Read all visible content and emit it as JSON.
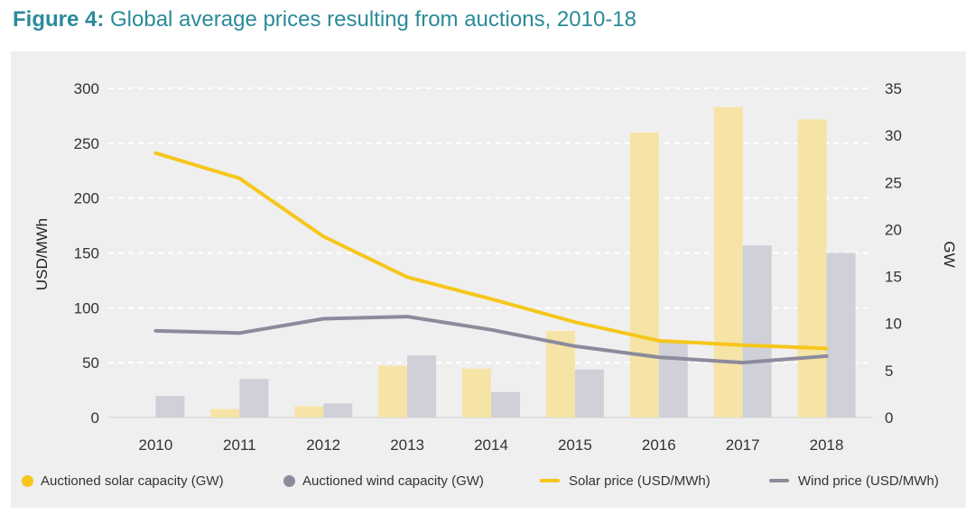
{
  "title": {
    "prefix": "Figure 4:",
    "text": "Global average prices resulting from auctions, 2010-18"
  },
  "colors": {
    "solar_bar": "#f5e4a6",
    "wind_bar": "#cfd0d8",
    "solar_line": "#f6c61b",
    "wind_line": "#8c8a9c",
    "solar_legend_dot": "#f6c61b",
    "wind_legend_dot": "#8c8a9c",
    "grid": "#ffffff"
  },
  "legend": [
    {
      "label": "Auctioned solar capacity (GW)",
      "kind": "dot",
      "color_key": "solar_legend_dot"
    },
    {
      "label": "Auctioned wind capacity (GW)",
      "kind": "dot",
      "color_key": "wind_legend_dot"
    },
    {
      "label": "Solar price (USD/MWh)",
      "kind": "line",
      "color_key": "solar_line"
    },
    {
      "label": "Wind price (USD/MWh)",
      "kind": "line",
      "color_key": "wind_line"
    }
  ],
  "chart_data": {
    "type": "bar",
    "categories": [
      "2010",
      "2011",
      "2012",
      "2013",
      "2014",
      "2015",
      "2016",
      "2017",
      "2018"
    ],
    "ylabel": "USD/MWh",
    "y2label": "GW",
    "ylim": [
      0,
      300
    ],
    "y2lim": [
      0,
      35
    ],
    "yticks": [
      0,
      50,
      100,
      150,
      200,
      250,
      300
    ],
    "y2ticks": [
      0,
      5,
      10,
      15,
      20,
      25,
      30,
      35
    ],
    "grid": true,
    "legend_position": "bottom",
    "series": [
      {
        "name": "Auctioned solar capacity (GW)",
        "type": "bar",
        "axis": "right",
        "values": [
          0,
          0.9,
          1.2,
          5.5,
          5.2,
          9.2,
          30.3,
          33.0,
          31.7
        ]
      },
      {
        "name": "Auctioned wind capacity (GW)",
        "type": "bar",
        "axis": "right",
        "values": [
          2.3,
          4.1,
          1.5,
          6.6,
          2.7,
          5.1,
          8.0,
          18.3,
          17.5
        ]
      },
      {
        "name": "Solar price (USD/MWh)",
        "type": "line",
        "axis": "left",
        "values": [
          241,
          218,
          165,
          128,
          108,
          87,
          70,
          66,
          63
        ]
      },
      {
        "name": "Wind price (USD/MWh)",
        "type": "line",
        "axis": "left",
        "values": [
          79,
          77,
          90,
          92,
          80,
          65,
          55,
          50,
          56
        ]
      }
    ]
  }
}
